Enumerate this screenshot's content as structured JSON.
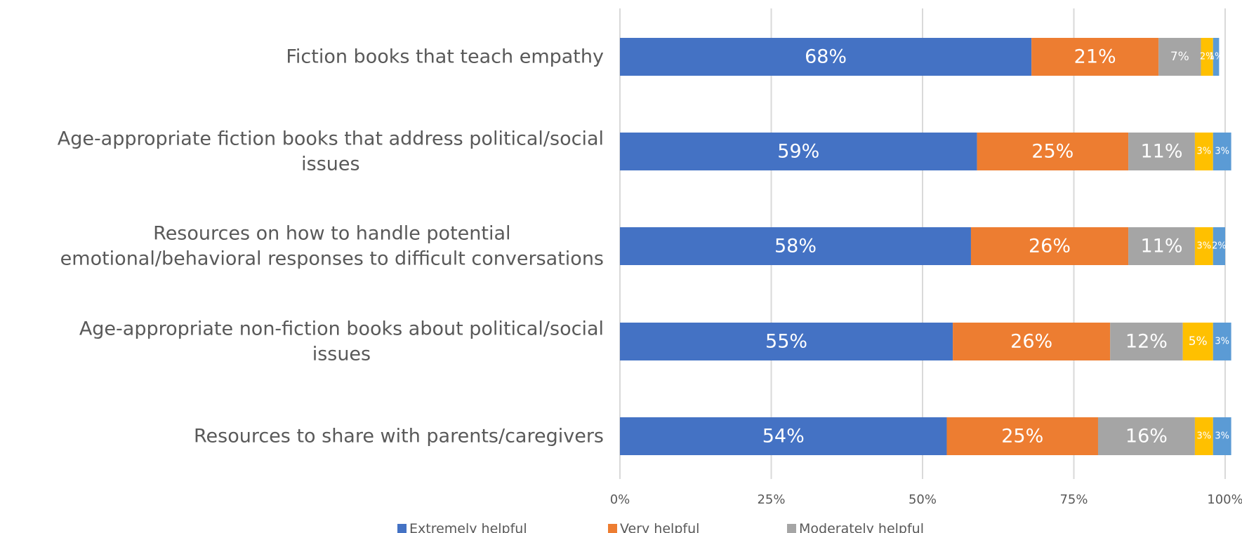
{
  "chart_data": {
    "type": "bar",
    "orientation": "horizontal",
    "stacked": true,
    "categories": [
      [
        "Fiction books that teach empathy"
      ],
      [
        "Age-appropriate fiction books that address political/social",
        "issues"
      ],
      [
        "Resources on how to handle potential",
        "emotional/behavioral responses to difficult conversations"
      ],
      [
        "Age-appropriate non-fiction books about political/social",
        "issues"
      ],
      [
        "Resources to share with parents/caregivers"
      ]
    ],
    "series": [
      {
        "name": "Extremely helpful",
        "color": "#4472C4",
        "values": [
          68,
          59,
          58,
          55,
          54
        ]
      },
      {
        "name": "Very helpful",
        "color": "#ED7D31",
        "values": [
          21,
          25,
          26,
          26,
          25
        ]
      },
      {
        "name": "Moderately helpful",
        "color": "#A5A5A5",
        "values": [
          7,
          11,
          11,
          12,
          16
        ]
      },
      {
        "name": "",
        "color": "#FFC000",
        "values": [
          2,
          3,
          3,
          5,
          3
        ]
      },
      {
        "name": "",
        "color": "#5B9BD5",
        "values": [
          1,
          3,
          2,
          3,
          3
        ]
      }
    ],
    "data_labels": [
      [
        "68%",
        "21%",
        "7%",
        "2%",
        "1%"
      ],
      [
        "59%",
        "25%",
        "11%",
        "3%",
        "3%"
      ],
      [
        "58%",
        "26%",
        "11%",
        "3%",
        "2%"
      ],
      [
        "55%",
        "26%",
        "12%",
        "5%",
        "3%"
      ],
      [
        "54%",
        "25%",
        "16%",
        "3%",
        "3%"
      ]
    ],
    "x_ticks": [
      "0%",
      "25%",
      "50%",
      "75%",
      "100%"
    ],
    "xlim": [
      0,
      100
    ],
    "grid": true,
    "legend": {
      "position": "bottom",
      "entries": [
        "Extremely helpful",
        "Very helpful",
        "Moderately helpful"
      ]
    }
  }
}
